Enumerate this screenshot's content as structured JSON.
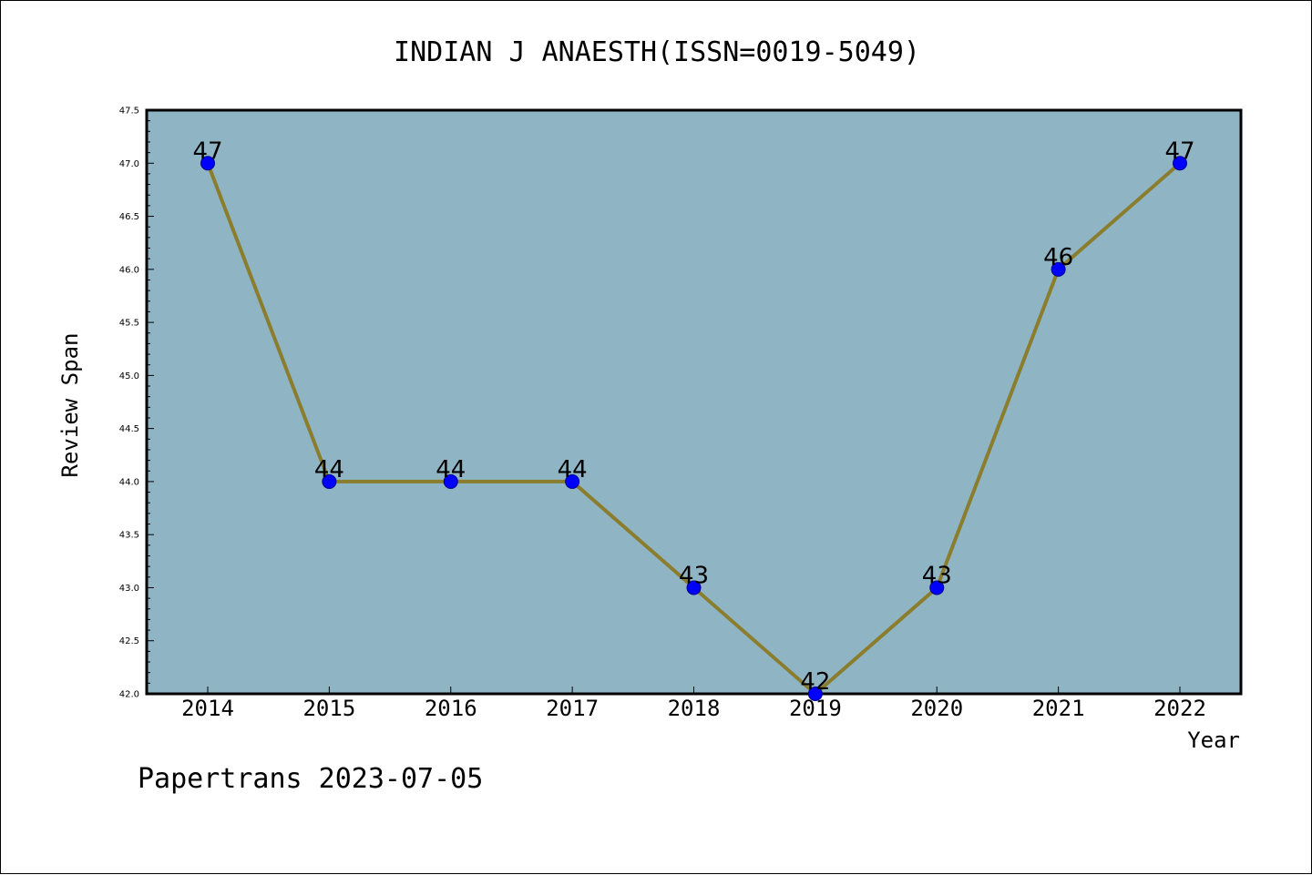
{
  "chart_data": {
    "type": "line",
    "title": "INDIAN J ANAESTH(ISSN=0019-5049)",
    "xlabel": "Year",
    "ylabel": "Review Span",
    "x": [
      "2014",
      "2015",
      "2016",
      "2017",
      "2018",
      "2019",
      "2020",
      "2021",
      "2022"
    ],
    "series": [
      {
        "values": [
          47,
          44,
          44,
          44,
          43,
          42,
          43,
          46,
          47
        ]
      }
    ],
    "data_labels": [
      "47",
      "44",
      "44",
      "44",
      "43",
      "42",
      "43",
      "46",
      "47"
    ],
    "ylim": [
      42.0,
      47.5
    ],
    "yticks": [
      "42.0",
      "42.5",
      "43.0",
      "43.5",
      "44.0",
      "44.5",
      "45.0",
      "45.5",
      "46.0",
      "46.5",
      "47.0",
      "47.5"
    ],
    "grid": false,
    "legend": "none",
    "colors": {
      "plot_background": "#8fb5c5",
      "line": "#8b7d2e",
      "marker": "#0000ff",
      "marker_edge": "#00008b",
      "axes": "#000000"
    }
  },
  "footer": "Papertrans 2023-07-05"
}
